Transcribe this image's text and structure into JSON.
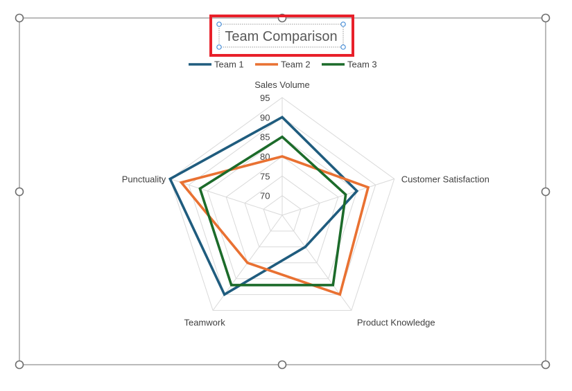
{
  "chart_data": {
    "type": "radar",
    "title": "Team Comparison",
    "axes": [
      "Sales Volume",
      "Customer Satisfaction",
      "Product Knowledge",
      "Teamwork",
      "Punctuality"
    ],
    "rlim": [
      65,
      95
    ],
    "ticks": [
      70,
      75,
      80,
      85,
      90,
      95
    ],
    "grid": true,
    "legend_position": "top",
    "series": [
      {
        "name": "Team 1",
        "color": "#1F5C7E",
        "values": [
          90,
          85,
          75,
          90,
          95
        ]
      },
      {
        "name": "Team 2",
        "color": "#E97132",
        "values": [
          80,
          88,
          90,
          80,
          92
        ]
      },
      {
        "name": "Team 3",
        "color": "#1C6B2A",
        "values": [
          85,
          82,
          87,
          87,
          87
        ]
      }
    ]
  },
  "ui": {
    "highlight_color": "#E8202A",
    "handle_color": "#6E6E6E",
    "title_handle_color": "#4A90D9",
    "grid_color": "#D9D9D9"
  }
}
